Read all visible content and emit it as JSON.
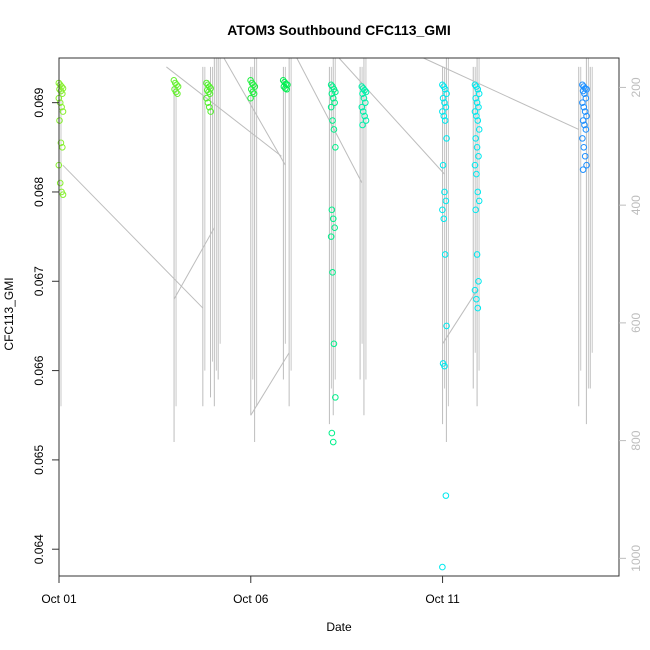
{
  "chart_data": {
    "type": "scatter",
    "title": "ATOM3 Southbound CFC113_GMI",
    "xlabel": "Date",
    "ylabel": "CFC113_GMI",
    "x_unit": "days",
    "xlim": [
      0.0,
      14.6
    ],
    "ylim": [
      0.0637,
      0.0695
    ],
    "x_ticks": [
      {
        "value": 0,
        "label": "Oct 01"
      },
      {
        "value": 5,
        "label": "Oct 06"
      },
      {
        "value": 10,
        "label": "Oct 11"
      }
    ],
    "y_ticks": [
      {
        "value": 0.064,
        "label": "0.064"
      },
      {
        "value": 0.065,
        "label": "0.065"
      },
      {
        "value": 0.066,
        "label": "0.066"
      },
      {
        "value": 0.067,
        "label": "0.067"
      },
      {
        "value": 0.068,
        "label": "0.068"
      },
      {
        "value": 0.069,
        "label": "0.069"
      }
    ],
    "secondary_axis": {
      "side": "right",
      "reversed": true,
      "ylim": [
        1030,
        150
      ],
      "ticks": [
        200,
        400,
        600,
        800,
        1000
      ]
    },
    "grid": false,
    "clusters": [
      {
        "x": 0.05,
        "color": "#88f030",
        "values": [
          0.06922,
          0.0692,
          0.06918,
          0.06916,
          0.06915,
          0.06913,
          0.0691,
          0.06905,
          0.069,
          0.06895,
          0.0689,
          0.0688,
          0.06855,
          0.0685,
          0.0683,
          0.0681,
          0.068,
          0.06797
        ]
      },
      {
        "x": 3.05,
        "color": "#66f030",
        "values": [
          0.06925,
          0.06922,
          0.0692,
          0.06918,
          0.06915,
          0.06912,
          0.0691
        ]
      },
      {
        "x": 3.9,
        "color": "#55f030",
        "values": [
          0.06922,
          0.0692,
          0.06918,
          0.06916,
          0.06914,
          0.06912,
          0.0691,
          0.06905,
          0.069,
          0.06895,
          0.0689
        ]
      },
      {
        "x": 5.05,
        "color": "#22f040",
        "values": [
          0.06925,
          0.06922,
          0.0692,
          0.06918,
          0.06915,
          0.06912,
          0.0691,
          0.06905
        ]
      },
      {
        "x": 5.9,
        "color": "#00f050",
        "values": [
          0.06925,
          0.06923,
          0.06921,
          0.0692,
          0.06918,
          0.06916,
          0.06915
        ]
      },
      {
        "x": 7.15,
        "color": "#00f08a",
        "values": [
          0.0692,
          0.06918,
          0.06915,
          0.06912,
          0.0691,
          0.06905,
          0.069,
          0.06895,
          0.0688,
          0.0687,
          0.0685,
          0.0678,
          0.0677,
          0.0676,
          0.0675,
          0.0671,
          0.0663,
          0.0657,
          0.0653,
          0.0652
        ]
      },
      {
        "x": 7.95,
        "color": "#00f0aa",
        "values": [
          0.06918,
          0.06916,
          0.06914,
          0.06912,
          0.0691,
          0.06905,
          0.069,
          0.06895,
          0.0689,
          0.06885,
          0.0688,
          0.06875
        ]
      },
      {
        "x": 10.05,
        "color": "#00e8ee",
        "values": [
          0.0692,
          0.06918,
          0.06915,
          0.0691,
          0.06905,
          0.069,
          0.06895,
          0.0689,
          0.06885,
          0.0688,
          0.0686,
          0.0683,
          0.068,
          0.0679,
          0.0678,
          0.0677,
          0.0673,
          0.0665,
          0.06608,
          0.06605,
          0.0646,
          0.0638
        ]
      },
      {
        "x": 10.9,
        "color": "#00e8ee",
        "values": [
          0.0692,
          0.06918,
          0.06915,
          0.0691,
          0.06905,
          0.069,
          0.06895,
          0.0689,
          0.06885,
          0.0688,
          0.0687,
          0.0686,
          0.0685,
          0.0684,
          0.0683,
          0.0682,
          0.068,
          0.0679,
          0.0678,
          0.0673,
          0.067,
          0.0669,
          0.0668,
          0.0667
        ]
      },
      {
        "x": 13.7,
        "color": "#1e90ff",
        "values": [
          0.0692,
          0.06918,
          0.06916,
          0.06915,
          0.06913,
          0.0691,
          0.06905,
          0.069,
          0.06895,
          0.0689,
          0.06885,
          0.0688,
          0.06875,
          0.0687,
          0.0686,
          0.0685,
          0.0684,
          0.0683,
          0.06825
        ]
      }
    ],
    "profiles": [
      {
        "x": 0.0,
        "top": 0.0692,
        "bottom": 0.0652
      },
      {
        "x": 3.0,
        "top": 0.0692,
        "bottom": 0.0652
      },
      {
        "x": 3.75,
        "top": 0.0694,
        "bottom": 0.0656
      },
      {
        "x": 3.95,
        "top": 0.0694,
        "bottom": 0.0657
      },
      {
        "x": 4.05,
        "top": 0.0695,
        "bottom": 0.0656
      },
      {
        "x": 4.15,
        "top": 0.0695,
        "bottom": 0.0659
      },
      {
        "x": 5.0,
        "top": 0.0694,
        "bottom": 0.0655
      },
      {
        "x": 5.1,
        "top": 0.0695,
        "bottom": 0.0652
      },
      {
        "x": 5.85,
        "top": 0.0694,
        "bottom": 0.0659
      },
      {
        "x": 6.0,
        "top": 0.0695,
        "bottom": 0.0656
      },
      {
        "x": 7.05,
        "top": 0.0694,
        "bottom": 0.0654
      },
      {
        "x": 7.15,
        "top": 0.0695,
        "bottom": 0.0655
      },
      {
        "x": 7.85,
        "top": 0.0694,
        "bottom": 0.0659
      },
      {
        "x": 7.95,
        "top": 0.0695,
        "bottom": 0.0655
      },
      {
        "x": 10.0,
        "top": 0.0694,
        "bottom": 0.0654
      },
      {
        "x": 10.1,
        "top": 0.0695,
        "bottom": 0.0652
      },
      {
        "x": 10.8,
        "top": 0.0694,
        "bottom": 0.0658
      },
      {
        "x": 10.9,
        "top": 0.0695,
        "bottom": 0.0656
      },
      {
        "x": 13.55,
        "top": 0.0694,
        "bottom": 0.0656
      },
      {
        "x": 13.75,
        "top": 0.0695,
        "bottom": 0.0654
      },
      {
        "x": 13.85,
        "top": 0.0694,
        "bottom": 0.0658
      }
    ],
    "transits": [
      [
        0.1,
        0.0683,
        3.75,
        0.0667
      ],
      [
        3.0,
        0.0668,
        4.05,
        0.0676
      ],
      [
        2.8,
        0.0694,
        5.8,
        0.0684
      ],
      [
        5.9,
        0.0683,
        4.3,
        0.0695
      ],
      [
        5.0,
        0.0655,
        6.0,
        0.0662
      ],
      [
        6.2,
        0.0695,
        7.9,
        0.0681
      ],
      [
        7.3,
        0.0695,
        10.05,
        0.0682
      ],
      [
        10.0,
        0.0663,
        10.9,
        0.0669
      ],
      [
        9.5,
        0.0695,
        13.55,
        0.0687
      ]
    ]
  }
}
